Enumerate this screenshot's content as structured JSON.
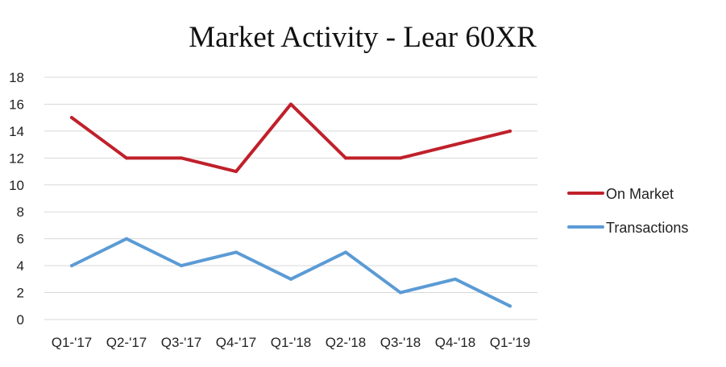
{
  "chart_data": {
    "type": "line",
    "title": "Market Activity - Lear 60XR",
    "xlabel": "",
    "ylabel": "",
    "categories": [
      "Q1-'17",
      "Q2-'17",
      "Q3-'17",
      "Q4-'17",
      "Q1-'18",
      "Q2-'18",
      "Q3-'18",
      "Q4-'18",
      "Q1-'19"
    ],
    "ylim": [
      0,
      18
    ],
    "yticks": [
      0,
      2,
      4,
      6,
      8,
      10,
      12,
      14,
      16,
      18
    ],
    "grid": true,
    "legend_position": "right",
    "series": [
      {
        "name": "On Market",
        "color": "#c0202b",
        "values": [
          15,
          12,
          12,
          11,
          16,
          12,
          12,
          13,
          14
        ]
      },
      {
        "name": "Transactions",
        "color": "#5b9bd5",
        "values": [
          4,
          6,
          4,
          5,
          3,
          5,
          2,
          3,
          1
        ]
      }
    ]
  }
}
